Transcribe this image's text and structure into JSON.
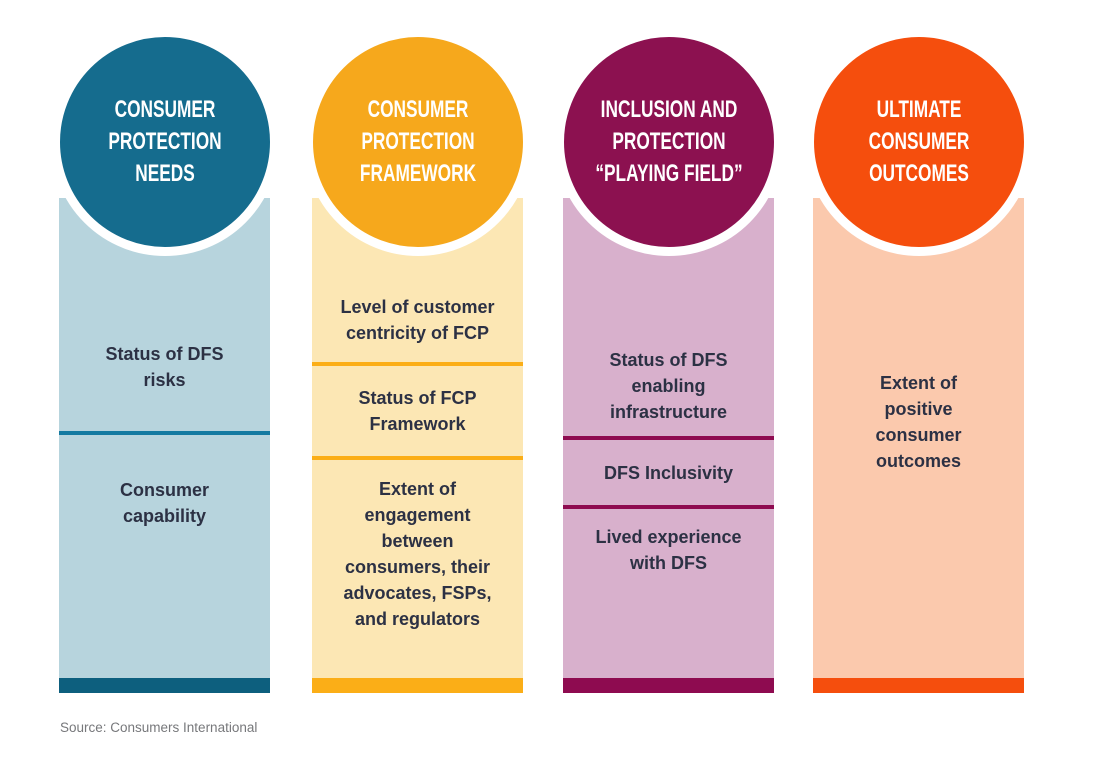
{
  "source_note": "Source: Consumers International",
  "text_color": "#2C3144",
  "source_color": "#77787B",
  "columns": [
    {
      "name": "consumer-protection-needs",
      "title": "CONSUMER\nPROTECTION\nNEEDS",
      "items": [
        "Status of DFS\nrisks",
        "Consumer\ncapability"
      ],
      "colors": {
        "circle": "#156C8E",
        "body": "#B7D4DD",
        "divider": "#147AA1",
        "accent_bar": "#0D5F7E"
      }
    },
    {
      "name": "consumer-protection-framework",
      "title": "CONSUMER\nPROTECTION\nFRAMEWORK",
      "items": [
        "Level of customer\ncentricity of FCP",
        "Status of FCP\nFramework",
        "Extent of\nengagement\nbetween\nconsumers, their\nadvocates, FSPs,\nand regulators"
      ],
      "colors": {
        "circle": "#F6A81C",
        "body": "#FCE7B4",
        "divider": "#FBAE17",
        "accent_bar": "#FBAE17"
      }
    },
    {
      "name": "inclusion-and-protection-playing-field",
      "title": "INCLUSION AND\nPROTECTION\n“PLAYING FIELD”",
      "items": [
        "Status of DFS\nenabling\ninfrastructure",
        "DFS Inclusivity",
        "Lived experience\nwith DFS"
      ],
      "colors": {
        "circle": "#8C1150",
        "body": "#D8B0CC",
        "divider": "#8E0B50",
        "accent_bar": "#8E0B50"
      }
    },
    {
      "name": "ultimate-consumer-outcomes",
      "title": "ULTIMATE\nCONSUMER\nOUTCOMES",
      "items": [
        "Extent of\npositive\nconsumer\noutcomes"
      ],
      "colors": {
        "circle": "#F54E0D",
        "body": "#FBC9AD",
        "divider": "#F54E0D",
        "accent_bar": "#F54E0D"
      }
    }
  ]
}
